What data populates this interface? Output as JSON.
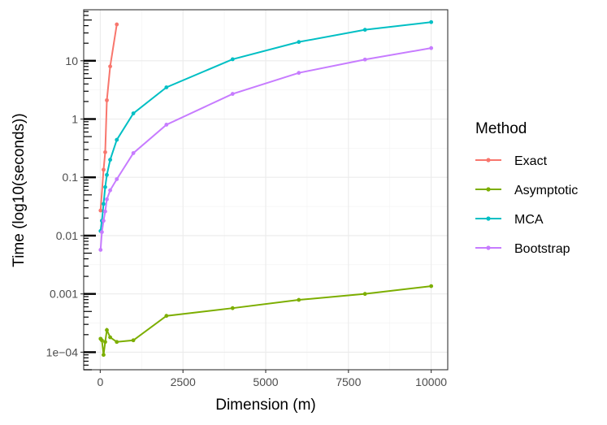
{
  "chart_data": {
    "type": "line",
    "title": "",
    "xlabel": "Dimension (m)",
    "ylabel": "Time (log10(seconds))",
    "x_scale": "linear",
    "y_scale": "log10",
    "xlim": [
      -500,
      10500
    ],
    "ylim": [
      5e-05,
      75
    ],
    "x_ticks": [
      0,
      2500,
      5000,
      7500,
      10000
    ],
    "x_tick_labels": [
      "0",
      "2500",
      "5000",
      "7500",
      "10000"
    ],
    "y_ticks": [
      0.0001,
      0.001,
      0.01,
      0.1,
      1,
      10
    ],
    "y_tick_labels": [
      "1e−04",
      "0.001",
      "0.01",
      "0.1",
      "1",
      "10"
    ],
    "grid": true,
    "legend_title": "Method",
    "legend_position": "right",
    "series": [
      {
        "name": "Exact",
        "color": "#F8766D",
        "points": [
          [
            10,
            0.027
          ],
          [
            100,
            0.135
          ],
          [
            150,
            0.27
          ],
          [
            200,
            2.1
          ],
          [
            300,
            8.0
          ],
          [
            500,
            42
          ]
        ]
      },
      {
        "name": "Asymptotic",
        "color": "#7CAE00",
        "points": [
          [
            10,
            0.00017
          ],
          [
            50,
            0.00016
          ],
          [
            100,
            9e-05
          ],
          [
            150,
            0.00015
          ],
          [
            200,
            0.00024
          ],
          [
            300,
            0.00018
          ],
          [
            500,
            0.00015
          ],
          [
            1000,
            0.00016
          ],
          [
            2000,
            0.00042
          ],
          [
            4000,
            0.00057
          ],
          [
            6000,
            0.00079
          ],
          [
            8000,
            0.001
          ],
          [
            10000,
            0.00136
          ]
        ]
      },
      {
        "name": "MCA",
        "color": "#00BFC4",
        "points": [
          [
            10,
            0.012
          ],
          [
            50,
            0.018
          ],
          [
            100,
            0.035
          ],
          [
            150,
            0.068
          ],
          [
            200,
            0.11
          ],
          [
            300,
            0.2
          ],
          [
            500,
            0.44
          ],
          [
            1000,
            1.25
          ],
          [
            2000,
            3.5
          ],
          [
            4000,
            10.6
          ],
          [
            6000,
            21
          ],
          [
            8000,
            34
          ],
          [
            10000,
            46
          ]
        ]
      },
      {
        "name": "Bootstrap",
        "color": "#C77CFF",
        "points": [
          [
            10,
            0.0057
          ],
          [
            50,
            0.0115
          ],
          [
            100,
            0.018
          ],
          [
            150,
            0.026
          ],
          [
            200,
            0.042
          ],
          [
            300,
            0.06
          ],
          [
            500,
            0.093
          ],
          [
            1000,
            0.26
          ],
          [
            2000,
            0.8
          ],
          [
            4000,
            2.7
          ],
          [
            6000,
            6.2
          ],
          [
            8000,
            10.5
          ],
          [
            10000,
            16.5
          ]
        ]
      }
    ]
  }
}
